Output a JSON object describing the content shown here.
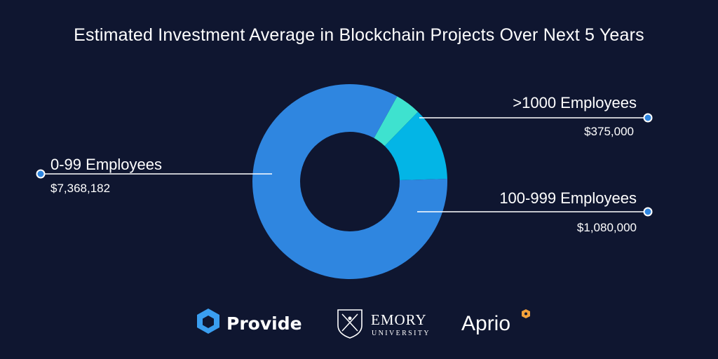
{
  "chart_data": {
    "type": "pie",
    "title": "Estimated Investment Average in Blockchain Projects Over Next 5 Years",
    "unit": "$",
    "donut": true,
    "slices": [
      {
        "label": "0-99 Employees",
        "value": 7368182,
        "value_text": "$7,368,182",
        "color": "#2f86e0"
      },
      {
        "label": "100-999 Employees",
        "value": 1080000,
        "value_text": "$1,080,000",
        "color": "#03b5e6"
      },
      {
        "label": ">1000 Employees",
        "value": 375000,
        "value_text": "$375,000",
        "color": "#3ee2cf"
      }
    ],
    "legend": "callout labels"
  },
  "logos": {
    "provide": "Provide",
    "emory_line1": "EMORY",
    "emory_line2": "UNIVERSITY",
    "aprio": "Aprio"
  },
  "colors": {
    "background": "#0f1630",
    "connector_dot": "#2f86e0",
    "text": "#ffffff",
    "provide_icon": "#3a9ef0",
    "aprio_badge": "#f2a13b"
  }
}
